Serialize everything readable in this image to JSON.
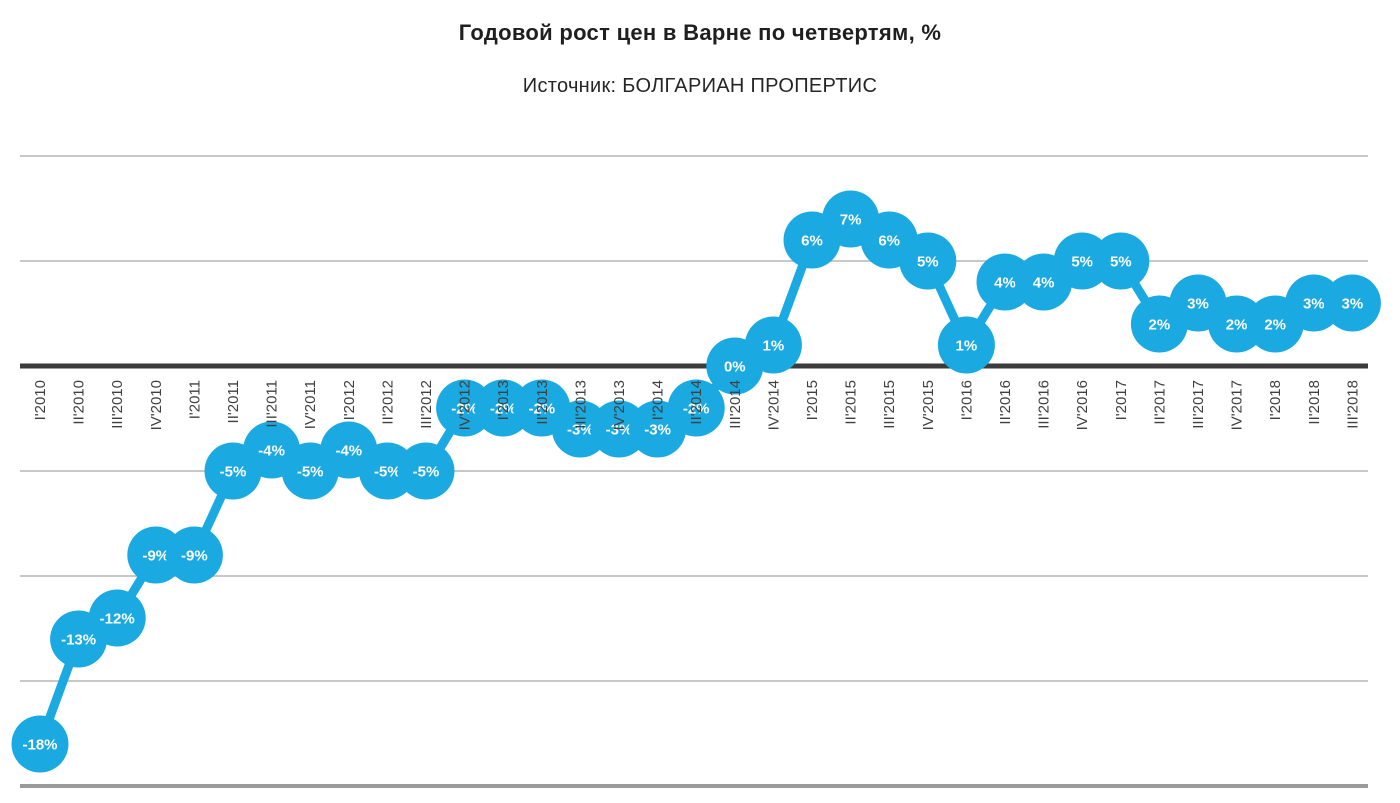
{
  "chart_data": {
    "type": "line",
    "title": "Годовой рост цен в Варне по четвертям, %",
    "subtitle": "Источник: БОЛГАРИАН ПРОПЕРТИС",
    "categories": [
      "I'2010",
      "II'2010",
      "III'2010",
      "IV'2010",
      "I'2011",
      "II'2011",
      "III'2011",
      "IV'2011",
      "I'2012",
      "II'2012",
      "III'2012",
      "IV'2012",
      "I'2013",
      "II'2013",
      "III'2013",
      "IV'2013",
      "I'2014",
      "II'2014",
      "III'2014",
      "IV'2014",
      "I'2015",
      "II'2015",
      "III'2015",
      "IV'2015",
      "I'2016",
      "II'2016",
      "III'2016",
      "IV'2016",
      "I'2017",
      "II'2017",
      "III'2017",
      "IV'2017",
      "I'2018",
      "II'2018",
      "III'2018"
    ],
    "values": [
      -18,
      -13,
      -12,
      -9,
      -9,
      -5,
      -4,
      -5,
      -4,
      -5,
      -5,
      -2,
      -2,
      -2,
      -3,
      -3,
      -3,
      -2,
      0,
      1,
      6,
      7,
      6,
      5,
      1,
      4,
      4,
      5,
      5,
      2,
      3,
      2,
      2,
      3,
      3
    ],
    "data_label_suffix": "%",
    "ylim": [
      -20,
      10
    ],
    "y_gridlines": [
      10,
      5,
      0,
      -5,
      -10,
      -15,
      -20
    ],
    "grid": true,
    "legend": "none",
    "marker_style": "filled-circle",
    "colors": {
      "series": "#1BA9E2",
      "point_label": "#ffffff",
      "gridline": "#c8c8c8",
      "bottom_gridline": "#9b9b9b",
      "zero_line": "#3b3b3b",
      "axis_text": "#404040"
    }
  }
}
